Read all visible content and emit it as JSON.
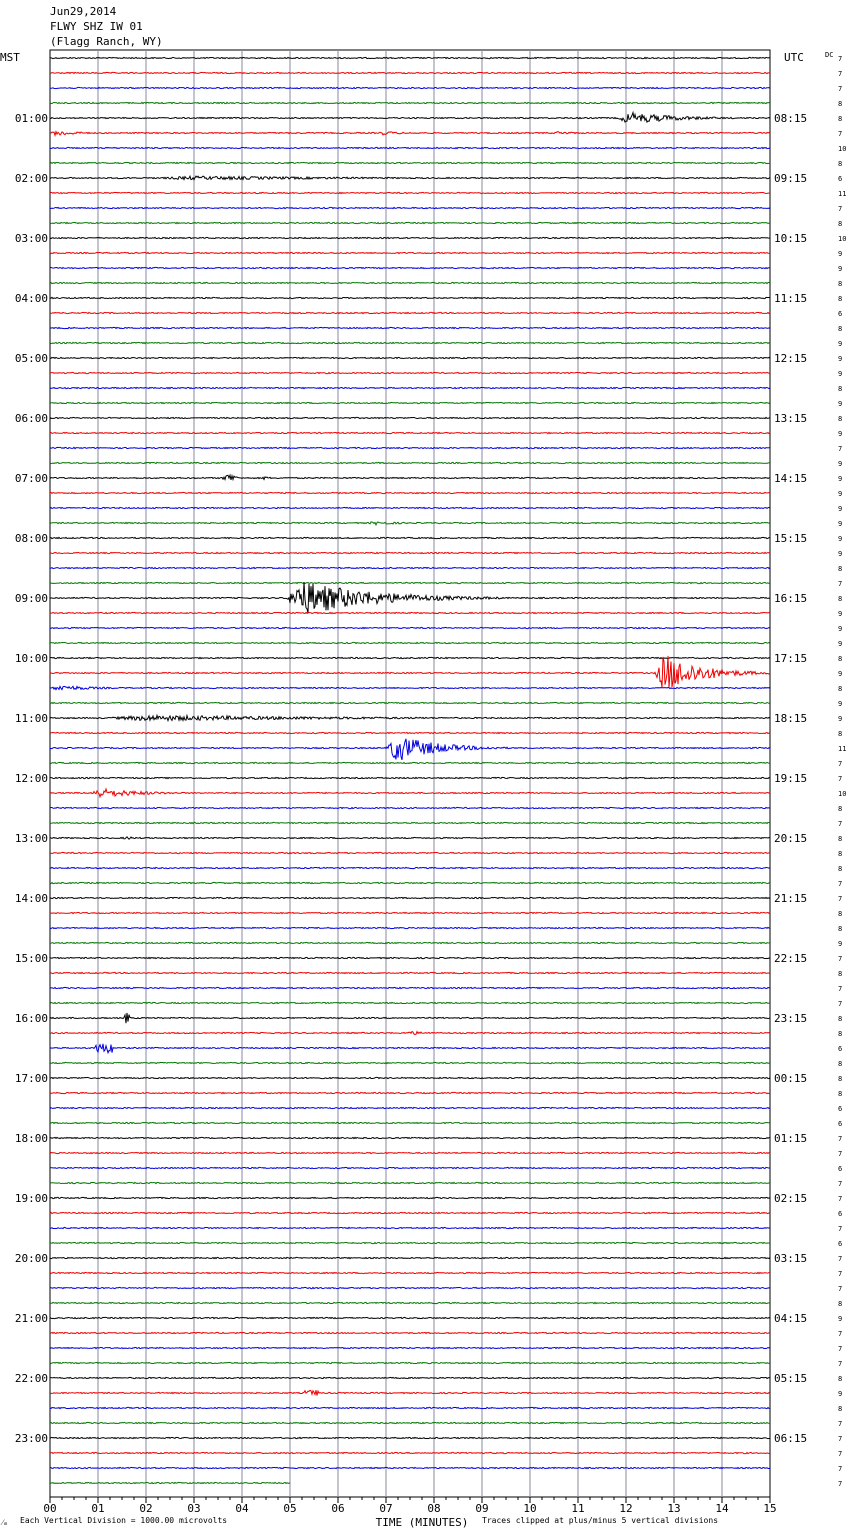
{
  "header": {
    "date": "Jun29,2014",
    "station": "FLWY SHZ IW 01",
    "location": "(Flagg Ranch, WY)"
  },
  "labels": {
    "left_tz": "MST",
    "right_tz": "UTC",
    "dc": "DC"
  },
  "footer": {
    "scale_note": "Each Vertical Division = 1000.00 microvolts",
    "clip_note": "Traces clipped at plus/minus 5 vertical divisions",
    "corner_mark": "⁄ₘ"
  },
  "colors": {
    "trace_cycle": [
      "#000000",
      "#ee0000",
      "#0000dd",
      "#007700"
    ],
    "grid": "#8a8aa0"
  },
  "chart_data": {
    "type": "line",
    "title": "",
    "xlabel": "TIME (MINUTES)",
    "x_ticks": [
      "00",
      "01",
      "02",
      "03",
      "04",
      "05",
      "06",
      "07",
      "08",
      "09",
      "10",
      "11",
      "12",
      "13",
      "14",
      "15"
    ],
    "xlim": [
      0,
      15
    ],
    "trace_minutes": 15,
    "trace_count": 96,
    "last_trace_end_minute": 5,
    "hour_labels_left": [
      "01:00",
      "02:00",
      "03:00",
      "04:00",
      "05:00",
      "06:00",
      "07:00",
      "08:00",
      "09:00",
      "10:00",
      "11:00",
      "12:00",
      "13:00",
      "14:00",
      "15:00",
      "16:00",
      "17:00",
      "18:00",
      "19:00",
      "20:00",
      "21:00",
      "22:00",
      "23:00"
    ],
    "hour_labels_right": [
      "08:15",
      "09:15",
      "10:15",
      "11:15",
      "12:15",
      "13:15",
      "14:15",
      "15:15",
      "16:15",
      "17:15",
      "18:15",
      "19:15",
      "20:15",
      "21:15",
      "22:15",
      "23:15",
      "00:15",
      "01:15",
      "02:15",
      "03:15",
      "04:15",
      "05:15",
      "06:15"
    ],
    "dc_offsets": [
      "7",
      "7",
      "7",
      "8",
      "8",
      "7",
      "10",
      "8",
      "6",
      "11",
      "7",
      "8",
      "10",
      "9",
      "9",
      "8",
      "8",
      "6",
      "8",
      "9",
      "9",
      "9",
      "8",
      "9",
      "8",
      "9",
      "7",
      "9",
      "9",
      "9",
      "9",
      "9",
      "9",
      "9",
      "8",
      "7",
      "8",
      "9",
      "9",
      "9",
      "8",
      "9",
      "8",
      "9",
      "9",
      "8",
      "11",
      "7",
      "7",
      "10",
      "8",
      "7",
      "8",
      "8",
      "8",
      "7",
      "7",
      "8",
      "8",
      "9",
      "7",
      "8",
      "7",
      "7",
      "8",
      "8",
      "6",
      "8",
      "8",
      "8",
      "6",
      "6",
      "7",
      "7",
      "6",
      "7",
      "7",
      "6",
      "7",
      "6",
      "7",
      "7",
      "7",
      "8",
      "9",
      "7",
      "7",
      "7",
      "8",
      "9",
      "8",
      "7",
      "7",
      "7",
      "7",
      "7"
    ],
    "events": [
      {
        "trace": 4,
        "start_min": 11.8,
        "end_min": 15.0,
        "amplitude": 6
      },
      {
        "trace": 5,
        "start_min": 0.0,
        "end_min": 1.6,
        "amplitude": 3
      },
      {
        "trace": 5,
        "start_min": 6.8,
        "end_min": 8.2,
        "amplitude": 2
      },
      {
        "trace": 5,
        "start_min": 10.5,
        "end_min": 11.6,
        "amplitude": 2
      },
      {
        "trace": 8,
        "start_min": 2.0,
        "end_min": 14.0,
        "amplitude": 2
      },
      {
        "trace": 28,
        "start_min": 3.6,
        "end_min": 3.9,
        "amplitude": 4
      },
      {
        "trace": 28,
        "start_min": 4.4,
        "end_min": 4.9,
        "amplitude": 2
      },
      {
        "trace": 31,
        "start_min": 6.6,
        "end_min": 8.5,
        "amplitude": 2
      },
      {
        "trace": 36,
        "start_min": 4.9,
        "end_min": 9.4,
        "amplitude": 18
      },
      {
        "trace": 41,
        "start_min": 12.6,
        "end_min": 15.0,
        "amplitude": 20
      },
      {
        "trace": 42,
        "start_min": 0.0,
        "end_min": 2.4,
        "amplitude": 3
      },
      {
        "trace": 44,
        "start_min": 1.0,
        "end_min": 14.0,
        "amplitude": 3
      },
      {
        "trace": 46,
        "start_min": 7.0,
        "end_min": 9.6,
        "amplitude": 14
      },
      {
        "trace": 49,
        "start_min": 0.8,
        "end_min": 3.5,
        "amplitude": 5
      },
      {
        "trace": 52,
        "start_min": 1.5,
        "end_min": 2.2,
        "amplitude": 2
      },
      {
        "trace": 64,
        "start_min": 1.55,
        "end_min": 1.65,
        "amplitude": 6
      },
      {
        "trace": 65,
        "start_min": 7.4,
        "end_min": 8.8,
        "amplitude": 2
      },
      {
        "trace": 66,
        "start_min": 0.9,
        "end_min": 1.3,
        "amplitude": 5
      },
      {
        "trace": 89,
        "start_min": 5.3,
        "end_min": 5.6,
        "amplitude": 3
      }
    ]
  }
}
